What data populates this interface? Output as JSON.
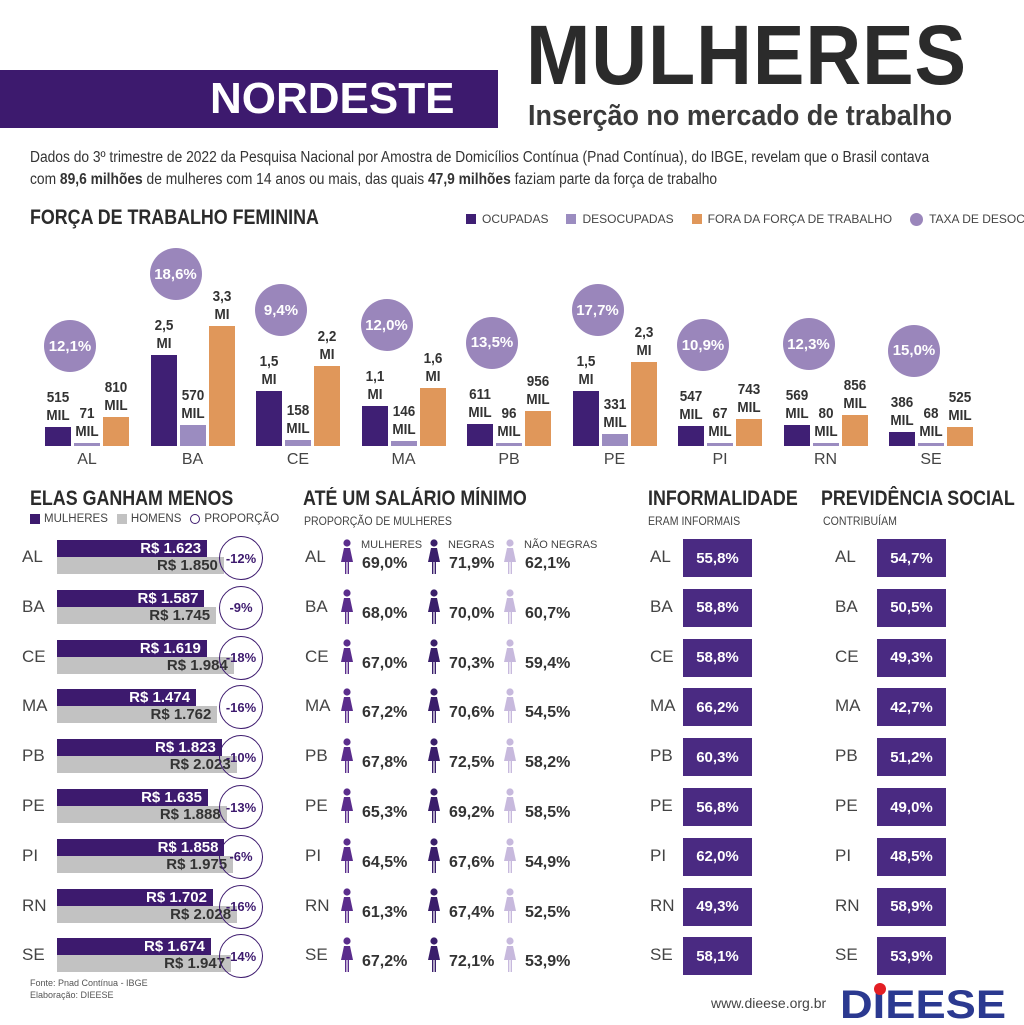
{
  "header": {
    "title": "MULHERES",
    "region": "NORDESTE",
    "subtitle": "Inserção no mercado de trabalho"
  },
  "intro": {
    "line1": "Dados do 3º trimestre de 2022 da Pesquisa Nacional por Amostra de Domicílios Contínua (Pnad Contínua), do IBGE, revelam que o Brasil contava",
    "line2_a": "com ",
    "line2_b": "89,6 milhões",
    "line2_c": " de mulheres com 14 anos ou mais, das quais ",
    "line2_d": "47,9 milhões",
    "line2_e": " faziam parte da força de trabalho"
  },
  "colors": {
    "ocupadas": "#3f1f74",
    "desocupadas": "#9b8cc0",
    "fora": "#e0975a",
    "taxa": "#9a86bb",
    "band": "#3d1a6e",
    "box": "#4a2a82",
    "mulheres_bar": "#3d1a6e",
    "homens_bar": "#c2c2c2",
    "icon_mulheres": "#5a2d8c",
    "icon_negras": "#3a1f6b",
    "icon_nao_negras": "#c7b9dd"
  },
  "chart_data": [
    {
      "type": "bar",
      "title": "FORÇA DE TRABALHO FEMININA",
      "categories": [
        "AL",
        "BA",
        "CE",
        "MA",
        "PB",
        "PE",
        "PI",
        "RN",
        "SE"
      ],
      "legend": [
        "OCUPADAS",
        "DESOCUPADAS",
        "FORA DA FORÇA DE TRABALHO",
        "TAXA DE DESOCUPAÇÃO"
      ],
      "unit": "mil",
      "series": [
        {
          "name": "OCUPADAS",
          "values": [
            515,
            2500,
            1500,
            1100,
            611,
            1500,
            547,
            569,
            386
          ],
          "labels": [
            [
              "515",
              "MIL"
            ],
            [
              "2,5",
              "MI"
            ],
            [
              "1,5",
              "MI"
            ],
            [
              "1,1",
              "MI"
            ],
            [
              "611",
              "MIL"
            ],
            [
              "1,5",
              "MI"
            ],
            [
              "547",
              "MIL"
            ],
            [
              "569",
              "MIL"
            ],
            [
              "386",
              "MIL"
            ]
          ]
        },
        {
          "name": "DESOCUPADAS",
          "values": [
            71,
            570,
            158,
            146,
            96,
            331,
            67,
            80,
            68
          ],
          "labels": [
            [
              "71",
              "MIL"
            ],
            [
              "570",
              "MIL"
            ],
            [
              "158",
              "MIL"
            ],
            [
              "146",
              "MIL"
            ],
            [
              "96",
              "MIL"
            ],
            [
              "331",
              "MIL"
            ],
            [
              "67",
              "MIL"
            ],
            [
              "80",
              "MIL"
            ],
            [
              "68",
              "MIL"
            ]
          ]
        },
        {
          "name": "FORA DA FORÇA DE TRABALHO",
          "values": [
            810,
            3300,
            2200,
            1600,
            956,
            2300,
            743,
            856,
            525
          ],
          "labels": [
            [
              "810",
              "MIL"
            ],
            [
              "3,3",
              "MI"
            ],
            [
              "2,2",
              "MI"
            ],
            [
              "1,6",
              "MI"
            ],
            [
              "956",
              "MIL"
            ],
            [
              "2,3",
              "MI"
            ],
            [
              "743",
              "MIL"
            ],
            [
              "856",
              "MIL"
            ],
            [
              "525",
              "MIL"
            ]
          ]
        }
      ],
      "taxa_desocupacao": [
        "12,1%",
        "18,6%",
        "9,4%",
        "12,0%",
        "13,5%",
        "17,7%",
        "10,9%",
        "12,3%",
        "15,0%"
      ]
    },
    {
      "type": "bar",
      "title": "ELAS GANHAM MENOS",
      "legend": [
        "MULHERES",
        "HOMENS",
        "PROPORÇÃO"
      ],
      "categories": [
        "AL",
        "BA",
        "CE",
        "MA",
        "PB",
        "PE",
        "PI",
        "RN",
        "SE"
      ],
      "series": [
        {
          "name": "MULHERES",
          "values": [
            1623,
            1587,
            1619,
            1474,
            1823,
            1635,
            1858,
            1702,
            1674
          ],
          "labels": [
            "R$ 1.623",
            "R$ 1.587",
            "R$ 1.619",
            "R$ 1.474",
            "R$ 1.823",
            "R$ 1.635",
            "R$ 1.858",
            "R$ 1.702",
            "R$ 1.674"
          ]
        },
        {
          "name": "HOMENS",
          "values": [
            1850,
            1745,
            1984,
            1762,
            2023,
            1888,
            1975,
            2028,
            1947
          ],
          "labels": [
            "R$ 1.850",
            "R$ 1.745",
            "R$ 1.984",
            "R$ 1.762",
            "R$ 2.023",
            "R$ 1.888",
            "R$ 1.975",
            "R$ 2.028",
            "R$ 1.947"
          ]
        }
      ],
      "proporcao": [
        "-12%",
        "-9%",
        "-18%",
        "-16%",
        "-10%",
        "-13%",
        "-6%",
        "-16%",
        "-14%"
      ]
    },
    {
      "type": "table",
      "title": "ATÉ UM SALÁRIO MÍNIMO",
      "subtitle": "PROPORÇÃO DE MULHERES",
      "columns": [
        "MULHERES",
        "NEGRAS",
        "NÃO NEGRAS"
      ],
      "categories": [
        "AL",
        "BA",
        "CE",
        "MA",
        "PB",
        "PE",
        "PI",
        "RN",
        "SE"
      ],
      "rows": [
        [
          "69,0%",
          "71,9%",
          "62,1%"
        ],
        [
          "68,0%",
          "70,0%",
          "60,7%"
        ],
        [
          "67,0%",
          "70,3%",
          "59,4%"
        ],
        [
          "67,2%",
          "70,6%",
          "54,5%"
        ],
        [
          "67,8%",
          "72,5%",
          "58,2%"
        ],
        [
          "65,3%",
          "69,2%",
          "58,5%"
        ],
        [
          "64,5%",
          "67,6%",
          "54,9%"
        ],
        [
          "61,3%",
          "67,4%",
          "52,5%"
        ],
        [
          "67,2%",
          "72,1%",
          "53,9%"
        ]
      ]
    },
    {
      "type": "table",
      "title": "INFORMALIDADE",
      "subtitle": "ERAM INFORMAIS",
      "categories": [
        "AL",
        "BA",
        "CE",
        "MA",
        "PB",
        "PE",
        "PI",
        "RN",
        "SE"
      ],
      "values": [
        "55,8%",
        "58,8%",
        "58,8%",
        "66,2%",
        "60,3%",
        "56,8%",
        "62,0%",
        "49,3%",
        "58,1%"
      ]
    },
    {
      "type": "table",
      "title": "PREVIDÊNCIA SOCIAL",
      "subtitle": "CONTRIBUÍAM",
      "categories": [
        "AL",
        "BA",
        "CE",
        "MA",
        "PB",
        "PE",
        "PI",
        "RN",
        "SE"
      ],
      "values": [
        "54,7%",
        "50,5%",
        "49,3%",
        "42,7%",
        "51,2%",
        "49,0%",
        "48,5%",
        "58,9%",
        "53,9%"
      ]
    }
  ],
  "footer": {
    "fonte": "Fonte: Pnad Contínua - IBGE",
    "elaboracao": "Elaboração: DIEESE",
    "site": "www.dieese.org.br",
    "logo": "DIEESE"
  }
}
